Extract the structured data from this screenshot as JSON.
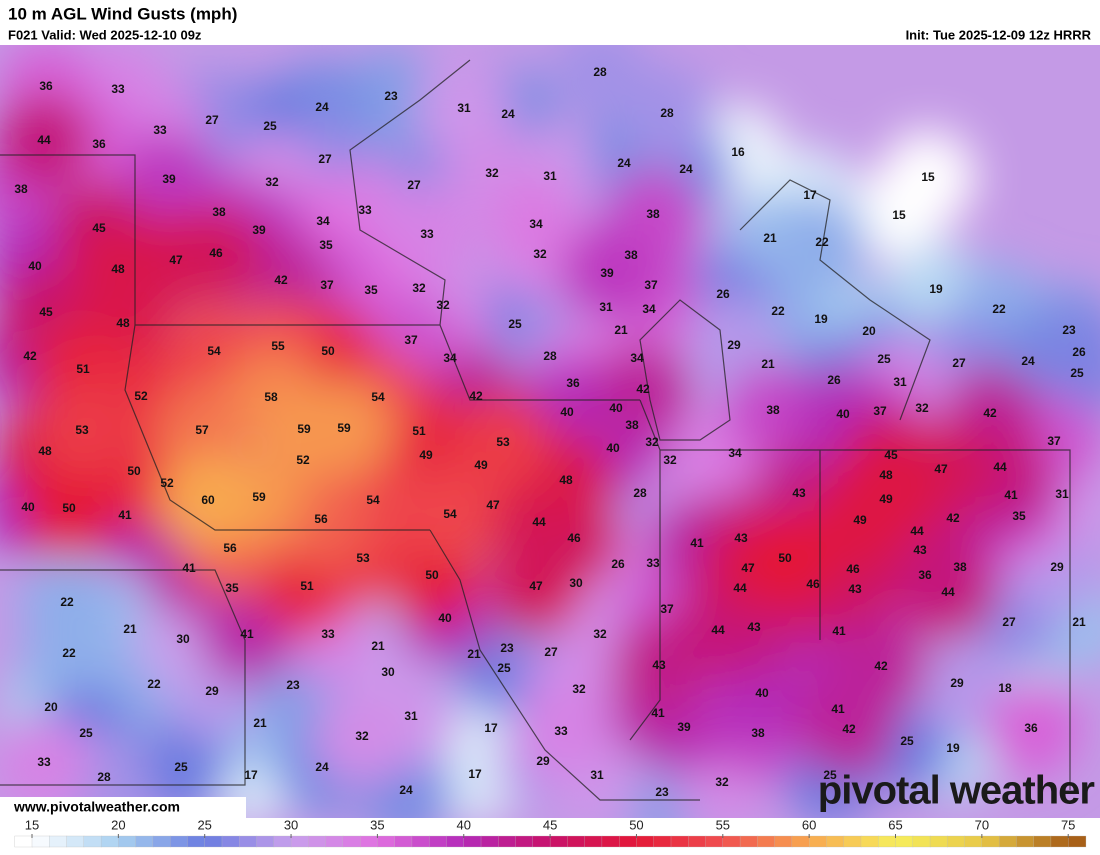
{
  "header": {
    "title": "10 m AGL Wind Gusts (mph)",
    "valid": "F021 Valid: Wed 2025-12-10 09z",
    "init": "Init: Tue 2025-12-09 12z HRRR"
  },
  "map": {
    "gusts": [
      36,
      33,
      24,
      23,
      31,
      24,
      28,
      28,
      44,
      36,
      33,
      27,
      25,
      16,
      24,
      24,
      27,
      15,
      38,
      39,
      32,
      27,
      32,
      31,
      17,
      38,
      33,
      38,
      15,
      34,
      45,
      39,
      33,
      34,
      21,
      22,
      40,
      48,
      47,
      46,
      35,
      32,
      38,
      42,
      37,
      35,
      32,
      39,
      37,
      26,
      19,
      45,
      48,
      32,
      31,
      34,
      22,
      19,
      22,
      25,
      21,
      20,
      23,
      42,
      51,
      54,
      55,
      50,
      37,
      34,
      29,
      26,
      28,
      34,
      21,
      25,
      27,
      24,
      25,
      52,
      58,
      54,
      42,
      36,
      42,
      26,
      31,
      53,
      57,
      59,
      59,
      51,
      40,
      40,
      38,
      38,
      40,
      37,
      32,
      42,
      48,
      52,
      49,
      53,
      40,
      32,
      34,
      37,
      50,
      32,
      45,
      47,
      44,
      40,
      52,
      60,
      59,
      49,
      48,
      48,
      41,
      31,
      50,
      54,
      47,
      28,
      43,
      49,
      41,
      56,
      54,
      44,
      49,
      42,
      35,
      46,
      44,
      56,
      41,
      43,
      43,
      53,
      50,
      29,
      41,
      50,
      26,
      33,
      47,
      46,
      36,
      38,
      35,
      51,
      47,
      30,
      44,
      46,
      43,
      44,
      22,
      37,
      40,
      27,
      21,
      21,
      30,
      41,
      33,
      32,
      44,
      43,
      41,
      21,
      23,
      22,
      21,
      27,
      22,
      29,
      23,
      30,
      25,
      43,
      42,
      29,
      18,
      32,
      20,
      40,
      21,
      31,
      41,
      39,
      41,
      25,
      32,
      17,
      33,
      38,
      42,
      25,
      36,
      19,
      33,
      25,
      24,
      29,
      28,
      17,
      17,
      31,
      25,
      32,
      24,
      23
    ]
  },
  "colorbar": {
    "ticks": [
      15,
      20,
      25,
      30,
      35,
      40,
      45,
      50,
      55,
      60,
      65,
      70,
      75
    ],
    "colors": [
      "#ffffff",
      "#a8d0f0",
      "#6a7ce0",
      "#c8a0ec",
      "#e070e0",
      "#b42ab8",
      "#c8126a",
      "#e41838",
      "#f05050",
      "#f8a850",
      "#f6ee5c",
      "#e8c848",
      "#a86018"
    ]
  },
  "footer": {
    "website": "www.pivotalweather.com",
    "watermark": "pivotal weather"
  }
}
